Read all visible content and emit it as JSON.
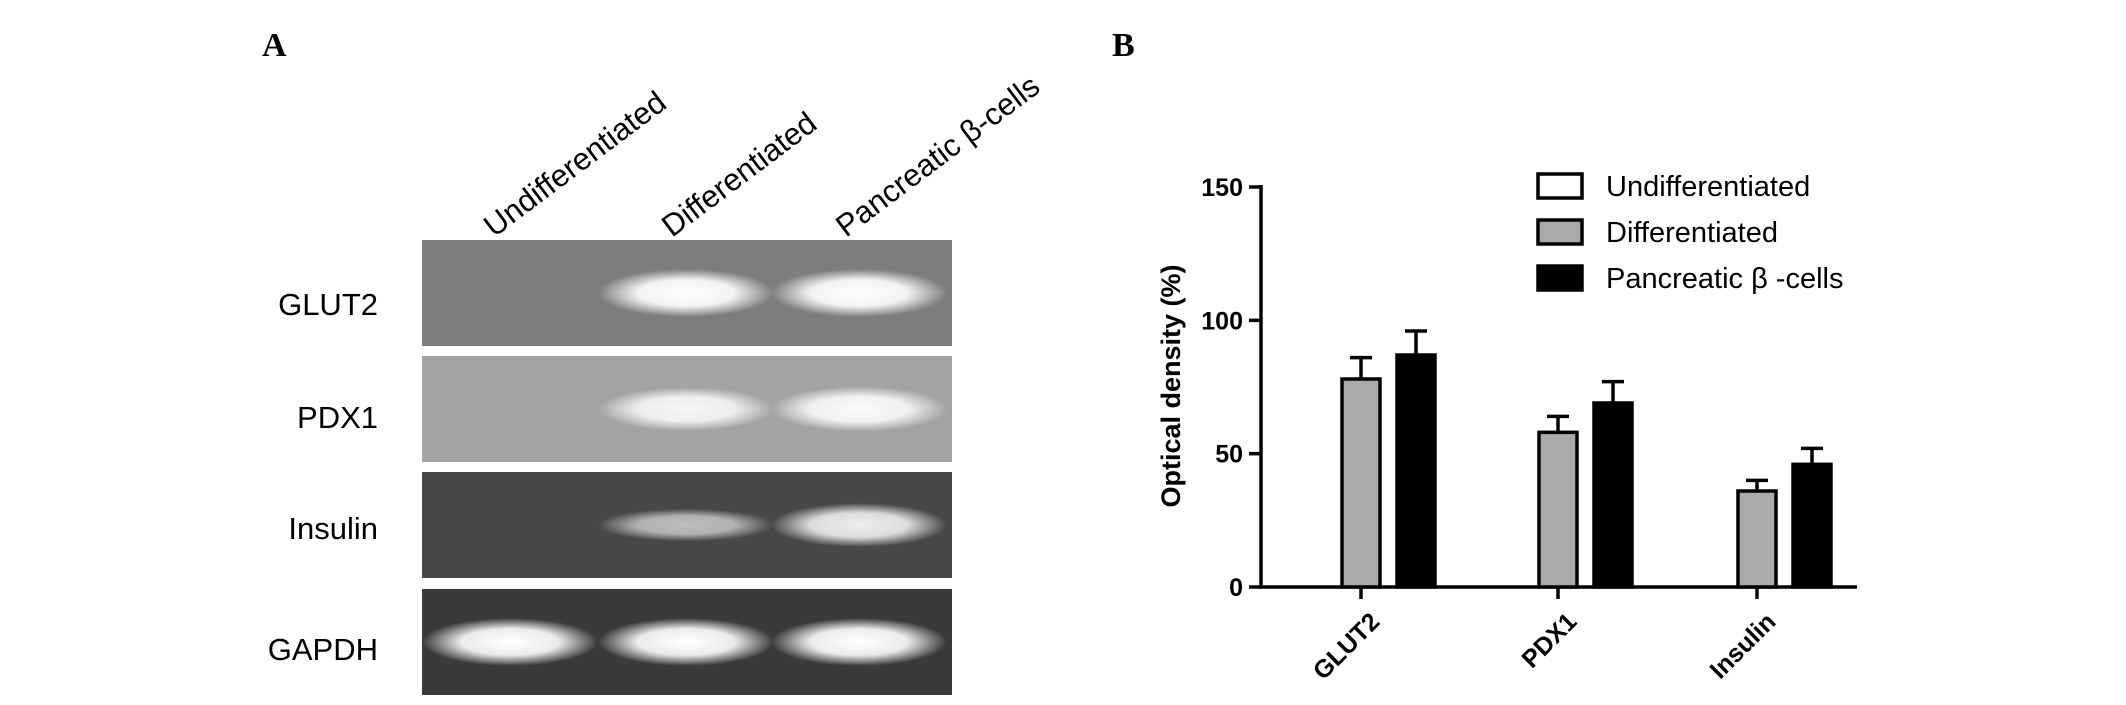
{
  "panel_a": {
    "letter": "A",
    "lanes": [
      "Undifferentiated",
      "Differentiated",
      "Pancreatic β-cells"
    ],
    "rows": [
      {
        "label": "GLUT2",
        "background": "#7d7d7d",
        "bands": [
          0,
          1.0,
          1.0
        ]
      },
      {
        "label": "PDX1",
        "background": "#a3a3a3",
        "bands": [
          0,
          0.85,
          0.9
        ]
      },
      {
        "label": "Insulin",
        "background": "#484848",
        "bands": [
          0,
          0.45,
          0.85
        ]
      },
      {
        "label": "GAPDH",
        "background": "#3a3a3a",
        "bands": [
          1.0,
          1.0,
          1.0
        ]
      }
    ]
  },
  "panel_b": {
    "letter": "B"
  },
  "chart_data": {
    "type": "bar",
    "categories": [
      "GLUT2",
      "PDX1",
      "Insulin"
    ],
    "series": [
      {
        "name": "Undifferentiated",
        "values": [
          0,
          0,
          0
        ],
        "errors": [
          0,
          0,
          0
        ],
        "color": "#ffffff"
      },
      {
        "name": "Differentiated",
        "values": [
          78,
          58,
          36
        ],
        "errors": [
          8,
          6,
          4
        ],
        "color": "#aaaaaa"
      },
      {
        "name": "Pancreatic β -cells",
        "values": [
          87,
          69,
          46
        ],
        "errors": [
          9,
          8,
          6
        ],
        "color": "#000000"
      }
    ],
    "ylabel": "Optical density (%)",
    "xlabel": "",
    "ylim": [
      0,
      150
    ],
    "yticks": [
      "0",
      "50",
      "100",
      "150"
    ],
    "legend_position": "top-right",
    "grid": false
  }
}
